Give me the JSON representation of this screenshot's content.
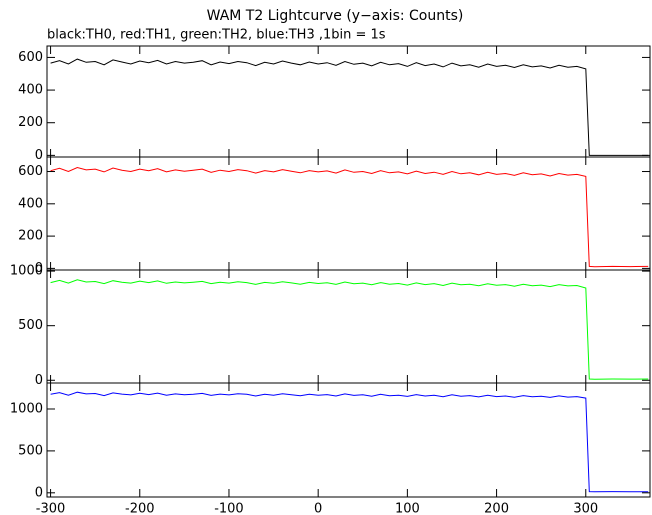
{
  "title": "WAM T2 Lightcurve (y−axis: Counts)",
  "subtitle": "black:TH0, red:TH1, green:TH2, blue:TH3 ,1bin = 1s",
  "chart_data": [
    {
      "type": "line",
      "color": "#000000",
      "xlim": [
        -304,
        372
      ],
      "xticks": [
        -300,
        -200,
        -100,
        0,
        100,
        200,
        300
      ],
      "ylim": [
        -10,
        670
      ],
      "yticks": [
        0,
        200,
        400,
        600
      ],
      "x": [
        -300,
        -290,
        -280,
        -270,
        -260,
        -250,
        -240,
        -230,
        -220,
        -210,
        -200,
        -190,
        -180,
        -170,
        -160,
        -150,
        -140,
        -130,
        -120,
        -110,
        -100,
        -90,
        -80,
        -70,
        -60,
        -50,
        -40,
        -30,
        -20,
        -10,
        0,
        10,
        20,
        30,
        40,
        50,
        60,
        70,
        80,
        90,
        100,
        110,
        120,
        130,
        140,
        150,
        160,
        170,
        180,
        190,
        200,
        210,
        220,
        230,
        240,
        250,
        260,
        270,
        280,
        290,
        300,
        304,
        310,
        330,
        350,
        370
      ],
      "values": [
        565,
        580,
        560,
        590,
        570,
        575,
        555,
        585,
        572,
        560,
        578,
        568,
        582,
        560,
        575,
        565,
        570,
        580,
        555,
        572,
        562,
        575,
        568,
        550,
        570,
        560,
        578,
        565,
        555,
        572,
        560,
        568,
        552,
        575,
        558,
        565,
        548,
        570,
        555,
        562,
        545,
        568,
        550,
        560,
        542,
        565,
        548,
        555,
        540,
        560,
        545,
        552,
        538,
        555,
        542,
        548,
        535,
        552,
        540,
        545,
        530,
        0,
        0,
        0,
        0,
        0
      ]
    },
    {
      "type": "line",
      "color": "#ff0000",
      "xlim": [
        -304,
        372
      ],
      "xticks": [
        -300,
        -200,
        -100,
        0,
        100,
        200,
        300
      ],
      "ylim": [
        -10,
        690
      ],
      "yticks": [
        0,
        200,
        400,
        600
      ],
      "x": [
        -300,
        -290,
        -280,
        -270,
        -260,
        -250,
        -240,
        -230,
        -220,
        -210,
        -200,
        -190,
        -180,
        -170,
        -160,
        -150,
        -140,
        -130,
        -120,
        -110,
        -100,
        -90,
        -80,
        -70,
        -60,
        -50,
        -40,
        -30,
        -20,
        -10,
        0,
        10,
        20,
        30,
        40,
        50,
        60,
        70,
        80,
        90,
        100,
        110,
        120,
        130,
        140,
        150,
        160,
        170,
        180,
        190,
        200,
        210,
        220,
        230,
        240,
        250,
        260,
        270,
        280,
        290,
        300,
        304,
        310,
        330,
        350,
        370
      ],
      "values": [
        605,
        620,
        600,
        625,
        610,
        615,
        598,
        622,
        608,
        600,
        615,
        605,
        618,
        598,
        610,
        602,
        608,
        615,
        595,
        608,
        600,
        612,
        605,
        590,
        606,
        598,
        612,
        602,
        592,
        606,
        598,
        604,
        590,
        610,
        595,
        600,
        588,
        605,
        592,
        598,
        585,
        602,
        588,
        596,
        582,
        600,
        586,
        592,
        580,
        595,
        582,
        588,
        576,
        592,
        580,
        585,
        572,
        588,
        578,
        582,
        570,
        12,
        10,
        12,
        11,
        12
      ]
    },
    {
      "type": "line",
      "color": "#00ff00",
      "xlim": [
        -304,
        372
      ],
      "xticks": [
        -300,
        -200,
        -100,
        0,
        100,
        200,
        300
      ],
      "ylim": [
        -25,
        1010
      ],
      "yticks": [
        0,
        500,
        1000
      ],
      "x": [
        -300,
        -290,
        -280,
        -270,
        -260,
        -250,
        -240,
        -230,
        -220,
        -210,
        -200,
        -190,
        -180,
        -170,
        -160,
        -150,
        -140,
        -130,
        -120,
        -110,
        -100,
        -90,
        -80,
        -70,
        -60,
        -50,
        -40,
        -30,
        -20,
        -10,
        0,
        10,
        20,
        30,
        40,
        50,
        60,
        70,
        80,
        90,
        100,
        110,
        120,
        130,
        140,
        150,
        160,
        170,
        180,
        190,
        200,
        210,
        220,
        230,
        240,
        250,
        260,
        270,
        280,
        290,
        300,
        304,
        310,
        330,
        350,
        370
      ],
      "values": [
        895,
        915,
        890,
        920,
        900,
        905,
        885,
        912,
        898,
        890,
        908,
        895,
        910,
        888,
        900,
        892,
        898,
        906,
        885,
        898,
        890,
        902,
        895,
        878,
        896,
        888,
        902,
        892,
        880,
        896,
        886,
        894,
        878,
        900,
        884,
        890,
        875,
        895,
        880,
        886,
        872,
        892,
        876,
        885,
        868,
        890,
        874,
        880,
        866,
        884,
        870,
        876,
        862,
        880,
        866,
        872,
        858,
        876,
        864,
        868,
        845,
        12,
        10,
        12,
        11,
        12
      ]
    },
    {
      "type": "line",
      "color": "#0000ff",
      "xlim": [
        -304,
        372
      ],
      "xticks": [
        -300,
        -200,
        -100,
        0,
        100,
        200,
        300
      ],
      "ylim": [
        -50,
        1310
      ],
      "yticks": [
        0,
        500,
        1000
      ],
      "x": [
        -300,
        -290,
        -280,
        -270,
        -260,
        -250,
        -240,
        -230,
        -220,
        -210,
        -200,
        -190,
        -180,
        -170,
        -160,
        -150,
        -140,
        -130,
        -120,
        -110,
        -100,
        -90,
        -80,
        -70,
        -60,
        -50,
        -40,
        -30,
        -20,
        -10,
        0,
        10,
        20,
        30,
        40,
        50,
        60,
        70,
        80,
        90,
        100,
        110,
        120,
        130,
        140,
        150,
        160,
        170,
        180,
        190,
        200,
        210,
        220,
        230,
        240,
        250,
        260,
        270,
        280,
        290,
        300,
        304,
        310,
        330,
        350,
        370
      ],
      "values": [
        1175,
        1195,
        1165,
        1200,
        1180,
        1185,
        1160,
        1192,
        1178,
        1168,
        1188,
        1172,
        1190,
        1165,
        1180,
        1170,
        1176,
        1186,
        1162,
        1178,
        1168,
        1182,
        1175,
        1155,
        1176,
        1165,
        1182,
        1170,
        1158,
        1176,
        1165,
        1172,
        1155,
        1180,
        1162,
        1170,
        1152,
        1175,
        1158,
        1165,
        1150,
        1172,
        1155,
        1164,
        1146,
        1170,
        1152,
        1160,
        1144,
        1165,
        1148,
        1155,
        1140,
        1160,
        1145,
        1152,
        1138,
        1156,
        1142,
        1148,
        1130,
        15,
        12,
        14,
        13,
        12
      ]
    }
  ]
}
